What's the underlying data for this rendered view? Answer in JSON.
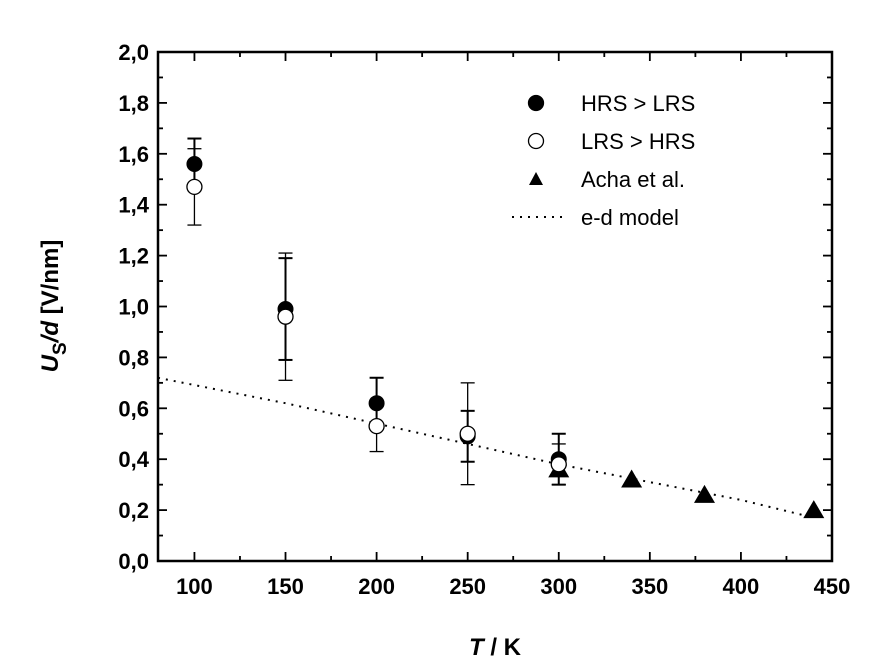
{
  "chart_data": {
    "type": "scatter",
    "xlabel_italic": "T",
    "xlabel_rest": " / K",
    "ylabel_italic_u": "U",
    "ylabel_sub": "S",
    "ylabel_italic_d": "/d",
    "ylabel_rest": " [V/nm]",
    "xlim": [
      80,
      450
    ],
    "ylim": [
      0.0,
      2.0
    ],
    "x_ticks": [
      100,
      150,
      200,
      250,
      300,
      350,
      400,
      450
    ],
    "x_tick_labels": [
      "100",
      "150",
      "200",
      "250",
      "300",
      "350",
      "400",
      "450"
    ],
    "y_ticks": [
      0.0,
      0.2,
      0.4,
      0.6,
      0.8,
      1.0,
      1.2,
      1.4,
      1.6,
      1.8,
      2.0
    ],
    "y_tick_labels": [
      "0,0",
      "0,2",
      "0,4",
      "0,6",
      "0,8",
      "1,0",
      "1,2",
      "1,4",
      "1,6",
      "1,8",
      "2,0"
    ],
    "legend_position": "top-right",
    "series": [
      {
        "name": "HRS > LRS",
        "marker": "filled-circle",
        "points": [
          {
            "x": 100,
            "y": 1.56,
            "err": 0.1
          },
          {
            "x": 150,
            "y": 0.99,
            "err": 0.2
          },
          {
            "x": 200,
            "y": 0.62,
            "err": 0.1
          },
          {
            "x": 250,
            "y": 0.49,
            "err": 0.1
          },
          {
            "x": 300,
            "y": 0.4,
            "err": 0.1
          }
        ]
      },
      {
        "name": "LRS > HRS",
        "marker": "open-circle",
        "points": [
          {
            "x": 100,
            "y": 1.47,
            "err": 0.15
          },
          {
            "x": 150,
            "y": 0.96,
            "err": 0.25
          },
          {
            "x": 200,
            "y": 0.53,
            "err": 0.1
          },
          {
            "x": 250,
            "y": 0.5,
            "err": 0.2
          },
          {
            "x": 300,
            "y": 0.38,
            "err": 0.08
          }
        ]
      },
      {
        "name": "Acha et al.",
        "marker": "filled-triangle",
        "points": [
          {
            "x": 300,
            "y": 0.36
          },
          {
            "x": 340,
            "y": 0.32
          },
          {
            "x": 380,
            "y": 0.26
          },
          {
            "x": 440,
            "y": 0.2
          }
        ]
      },
      {
        "name": "e-d model",
        "marker": "dotted-line",
        "points": [
          {
            "x": 80,
            "y": 0.72
          },
          {
            "x": 150,
            "y": 0.62
          },
          {
            "x": 200,
            "y": 0.54
          },
          {
            "x": 250,
            "y": 0.46
          },
          {
            "x": 300,
            "y": 0.38
          },
          {
            "x": 350,
            "y": 0.31
          },
          {
            "x": 400,
            "y": 0.24
          },
          {
            "x": 440,
            "y": 0.17
          }
        ]
      }
    ]
  }
}
